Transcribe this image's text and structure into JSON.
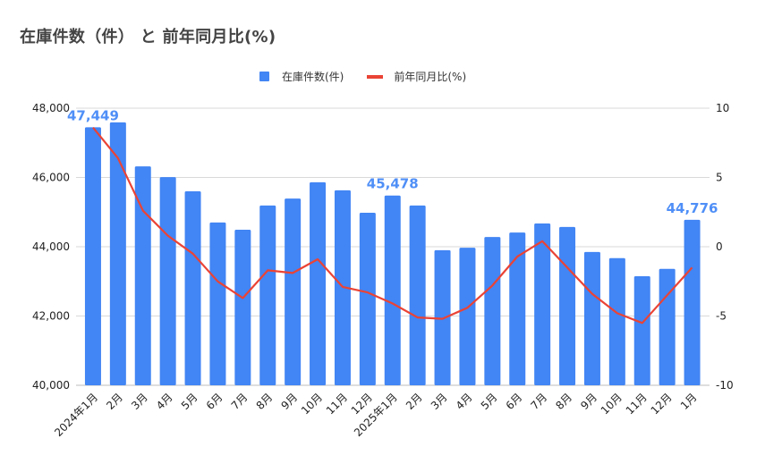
{
  "title": "在庫件数（件） と 前年同月比(%)",
  "legend": [
    {
      "label": "在庫件数(件)",
      "type": "bar",
      "color": "#4285f4"
    },
    {
      "label": "前年同月比(%)",
      "type": "line",
      "color": "#ea4335"
    }
  ],
  "chart_data": {
    "type": "bar+line",
    "title": "在庫件数（件） と 前年同月比(%)",
    "categories": [
      "2024年1月",
      "2月",
      "3月",
      "4月",
      "5月",
      "6月",
      "7月",
      "8月",
      "9月",
      "10月",
      "11月",
      "12月",
      "2025年1月",
      "2月",
      "3月",
      "4月",
      "5月",
      "6月",
      "7月",
      "8月",
      "9月",
      "10月",
      "11月",
      "12月",
      "1月"
    ],
    "series": [
      {
        "name": "在庫件数(件)",
        "type": "bar",
        "axis": "left",
        "color": "#4285f4",
        "values": [
          47449,
          47590,
          46320,
          46010,
          45600,
          44700,
          44490,
          45190,
          45390,
          45860,
          45630,
          44980,
          45478,
          45190,
          43900,
          43970,
          44280,
          44410,
          44670,
          44570,
          43850,
          43670,
          43150,
          43360,
          44776
        ]
      },
      {
        "name": "前年同月比(%)",
        "type": "line",
        "axis": "right",
        "color": "#ea4335",
        "values": [
          8.6,
          6.4,
          2.6,
          0.8,
          -0.5,
          -2.5,
          -3.7,
          -1.7,
          -1.9,
          -0.9,
          -2.9,
          -3.3,
          -4.1,
          -5.1,
          -5.2,
          -4.4,
          -2.8,
          -0.7,
          0.4,
          -1.5,
          -3.4,
          -4.8,
          -5.5,
          -3.5,
          -1.5
        ]
      }
    ],
    "data_labels": [
      {
        "index": 0,
        "text": "47,449"
      },
      {
        "index": 12,
        "text": "45,478"
      },
      {
        "index": 24,
        "text": "44,776"
      }
    ],
    "left_axis": {
      "ticks": [
        "40,000",
        "42,000",
        "44,000",
        "46,000",
        "48,000"
      ],
      "range": [
        40000,
        48000
      ]
    },
    "right_axis": {
      "ticks": [
        "-10",
        "-5",
        "0",
        "5",
        "10"
      ],
      "range": [
        -10,
        10
      ]
    },
    "xlabel": "",
    "ylabel": "",
    "grid": true,
    "legend_position": "top"
  }
}
